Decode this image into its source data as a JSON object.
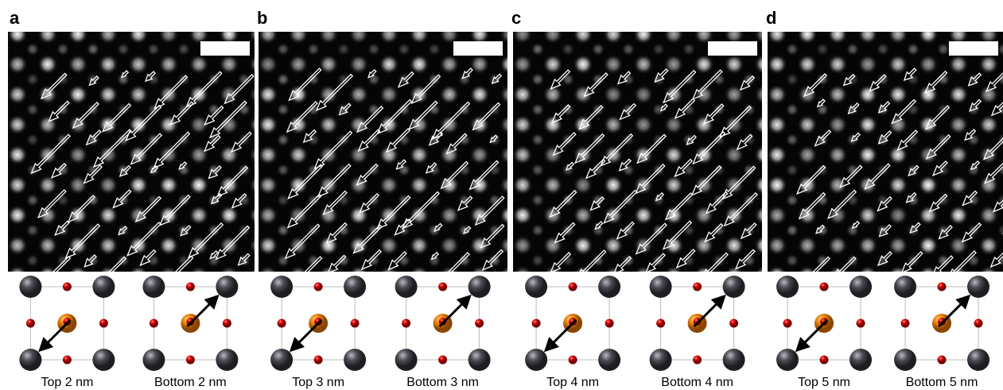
{
  "panels": [
    {
      "label": "a",
      "captions": [
        "Top 2 nm",
        "Bottom 2 nm"
      ]
    },
    {
      "label": "b",
      "captions": [
        "Top 3 nm",
        "Bottom 3 nm"
      ]
    },
    {
      "label": "c",
      "captions": [
        "Top 4 nm",
        "Bottom 4 nm"
      ]
    },
    {
      "label": "d",
      "captions": [
        "Top 5 nm",
        "Bottom 5 nm"
      ]
    }
  ]
}
